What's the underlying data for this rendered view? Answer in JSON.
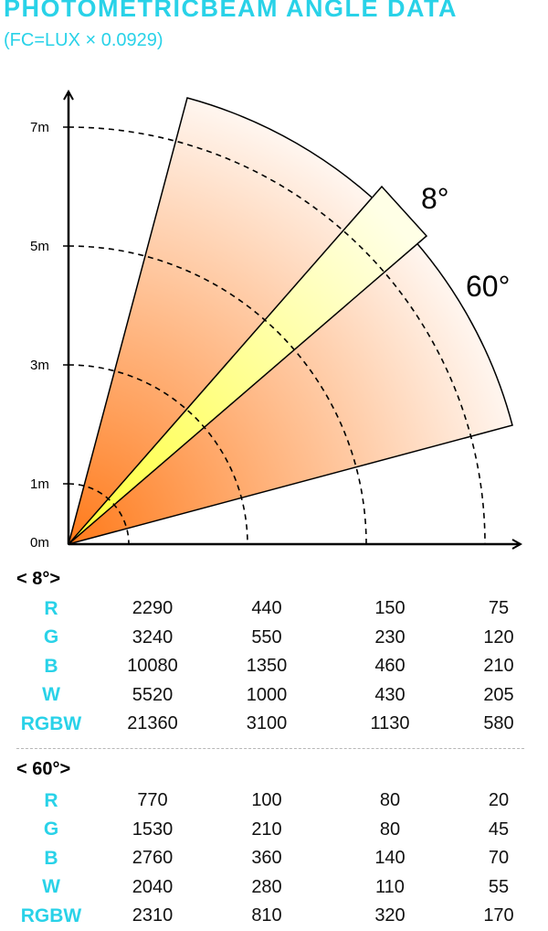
{
  "header": {
    "title": "PHOTOMETRICBEAM ANGLE DATA",
    "subtitle": "(FC=LUX × 0.0929)",
    "accent_color": "#29d2e8"
  },
  "diagram": {
    "y_axis_labels": [
      "7m",
      "5m",
      "3m",
      "1m",
      "0m"
    ],
    "beam_labels": {
      "narrow": "8°",
      "wide": "60°"
    },
    "colors": {
      "beam_hot": "#ff7a1a",
      "beam_cold": "#fff5ee",
      "narrow_inner": "#ffff33",
      "narrow_outer": "#ffffe6"
    }
  },
  "tables": [
    {
      "heading": "< 8°>",
      "rows": [
        {
          "label": "R",
          "values": [
            "2290",
            "440",
            "150",
            "75"
          ]
        },
        {
          "label": "G",
          "values": [
            "3240",
            "550",
            "230",
            "120"
          ]
        },
        {
          "label": "B",
          "values": [
            "10080",
            "1350",
            "460",
            "210"
          ]
        },
        {
          "label": "W",
          "values": [
            "5520",
            "1000",
            "430",
            "205"
          ]
        },
        {
          "label": "RGBW",
          "values": [
            "21360",
            "3100",
            "1130",
            "580"
          ]
        }
      ]
    },
    {
      "heading": "< 60°>",
      "rows": [
        {
          "label": "R",
          "values": [
            "770",
            "100",
            "80",
            "20"
          ]
        },
        {
          "label": "G",
          "values": [
            "1530",
            "210",
            "80",
            "45"
          ]
        },
        {
          "label": "B",
          "values": [
            "2760",
            "360",
            "140",
            "70"
          ]
        },
        {
          "label": "W",
          "values": [
            "2040",
            "280",
            "110",
            "55"
          ]
        },
        {
          "label": "RGBW",
          "values": [
            "2310",
            "810",
            "320",
            "170"
          ]
        }
      ]
    }
  ]
}
